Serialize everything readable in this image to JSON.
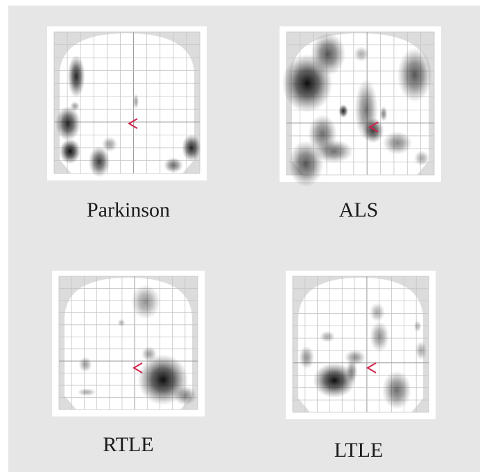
{
  "panels": [
    {
      "label": "Parkinson"
    },
    {
      "label": "ALS"
    },
    {
      "label": "RTLE"
    },
    {
      "label": "LTLE"
    }
  ]
}
